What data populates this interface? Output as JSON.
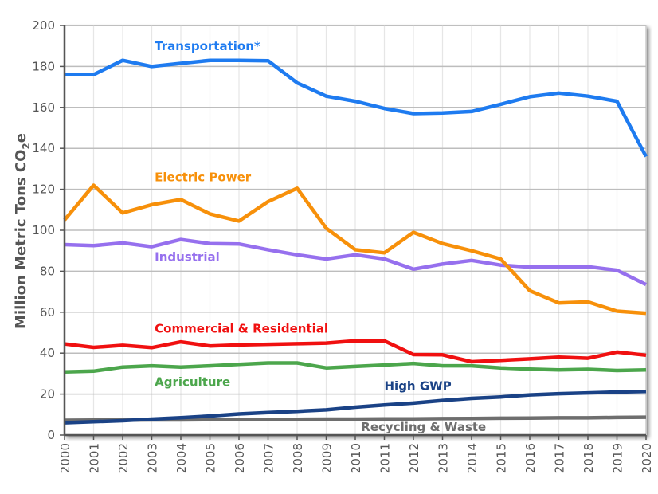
{
  "chart_data": {
    "type": "line",
    "title": "",
    "xlabel": "",
    "ylabel": "Million Metric Tons CO",
    "ylabel_sub": "2",
    "ylabel_suffix": "e",
    "ylim": [
      0,
      200
    ],
    "yticks": [
      0,
      20,
      40,
      60,
      80,
      100,
      120,
      140,
      160,
      180,
      200
    ],
    "grid": true,
    "x": [
      "2000",
      "2001",
      "2002",
      "2003",
      "2004",
      "2005",
      "2006",
      "2007",
      "2008",
      "2009",
      "2010",
      "2011",
      "2012",
      "2013",
      "2014",
      "2015",
      "2016",
      "2017",
      "2018",
      "2019",
      "2020"
    ],
    "series": [
      {
        "name": "Transportation*",
        "color": "#1E7BF0",
        "label_pos": {
          "year": 2003.1,
          "value": 188
        },
        "values": [
          176,
          176,
          183,
          180,
          181.5,
          183,
          183,
          182.8,
          172,
          165.5,
          163,
          159.5,
          157,
          157.3,
          158,
          161.5,
          165.2,
          167,
          165.5,
          163,
          136
        ]
      },
      {
        "name": "Electric Power",
        "color": "#F7900A",
        "label_pos": {
          "year": 2003.1,
          "value": 124
        },
        "values": [
          105,
          122,
          108.5,
          112.5,
          115,
          108,
          104.5,
          114,
          120.5,
          101,
          90.5,
          89,
          99,
          93.5,
          90,
          86,
          70.5,
          64.5,
          65,
          60.5,
          59.5
        ]
      },
      {
        "name": "Industrial",
        "color": "#9670EE",
        "label_pos": {
          "year": 2003.1,
          "value": 85
        },
        "values": [
          93,
          92.5,
          93.8,
          92,
          95.5,
          93.5,
          93.3,
          90.5,
          88,
          86,
          88,
          86,
          81,
          83.5,
          85.3,
          83,
          82,
          82,
          82.2,
          80.5,
          73.5
        ]
      },
      {
        "name": "Commercial & Residential",
        "color": "#F01010",
        "label_pos": {
          "year": 2003.1,
          "value": 50
        },
        "values": [
          44.5,
          42.8,
          43.8,
          42.7,
          45.5,
          43.5,
          44,
          44.3,
          44.6,
          44.9,
          46,
          46,
          39.3,
          39.2,
          35.8,
          36.5,
          37.2,
          38,
          37.5,
          40.5,
          39
        ]
      },
      {
        "name": "Agriculture",
        "color": "#4CA64C",
        "label_pos": {
          "year": 2003.1,
          "value": 24
        },
        "values": [
          30.8,
          31.2,
          33.2,
          33.8,
          33.2,
          33.8,
          34.5,
          35.2,
          35.2,
          32.8,
          33.5,
          34.2,
          35,
          33.8,
          33.8,
          32.8,
          32.2,
          31.8,
          32.1,
          31.5,
          31.8
        ]
      },
      {
        "name": "High GWP",
        "color": "#1A4286",
        "label_pos": {
          "year": 2011,
          "value": 22
        },
        "values": [
          6,
          6.5,
          7,
          7.8,
          8.5,
          9.3,
          10.3,
          11,
          11.6,
          12.3,
          13.6,
          14.7,
          15.6,
          16.9,
          17.9,
          18.6,
          19.6,
          20.2,
          20.6,
          21,
          21.3
        ]
      },
      {
        "name": "Recycling & Waste",
        "color": "#6E6E6E",
        "label_pos": {
          "year": 2010.2,
          "value": 2
        },
        "values": [
          7.2,
          7.3,
          7.3,
          7.4,
          7.4,
          7.5,
          7.5,
          7.6,
          7.7,
          7.8,
          7.8,
          7.9,
          7.9,
          8,
          8.1,
          8.2,
          8.3,
          8.4,
          8.4,
          8.6,
          8.7
        ]
      }
    ]
  }
}
